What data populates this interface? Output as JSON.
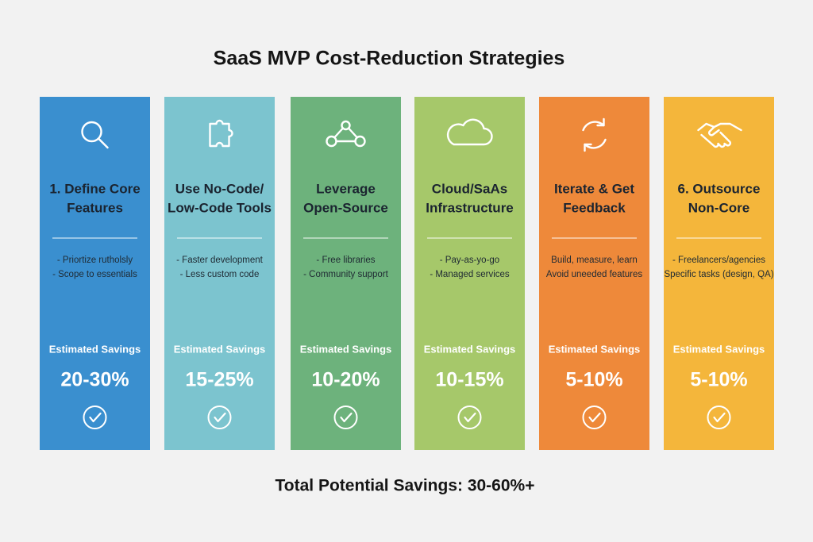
{
  "header": {
    "title": "SaaS MVP Cost-Reduction Strategies"
  },
  "cards": [
    {
      "title_lines": [
        "1. Define Core",
        "Features"
      ],
      "bullets": [
        "- Priortize rutholsly",
        "- Scope to essentials"
      ],
      "savings_label": "Estimated Savings",
      "savings": "20-30%"
    },
    {
      "title_lines": [
        "Use No-Code/",
        "Low-Code Tools"
      ],
      "bullets": [
        "- Faster development",
        "- Less custom code"
      ],
      "savings_label": "Estimated Savings",
      "savings": "15-25%"
    },
    {
      "title_lines": [
        "Leverage",
        "Open-Source"
      ],
      "bullets": [
        "- Free libraries",
        "- Community support"
      ],
      "savings_label": "Estimated Savings",
      "savings": "10-20%"
    },
    {
      "title_lines": [
        "Cloud/SaAs",
        "Infrastructure"
      ],
      "bullets": [
        "- Pay-as-yo-go",
        "- Managed services"
      ],
      "savings_label": "Estimated Savings",
      "savings": "10-15%"
    },
    {
      "title_lines": [
        "Iterate & Get",
        "Feedback"
      ],
      "bullets": [
        "Build, measure, learn",
        "Avoid uneeded features"
      ],
      "savings_label": "Estimated Savings",
      "savings": "5-10%"
    },
    {
      "title_lines": [
        "6. Outsource",
        "Non-Core"
      ],
      "bullets": [
        "- Freelancers/agencies",
        "Specific tasks (design, QA)"
      ],
      "savings_label": "Estimated Savings",
      "savings": "5-10%"
    }
  ],
  "footer": {
    "total": "Total Potential Savings: 30-60%+"
  }
}
